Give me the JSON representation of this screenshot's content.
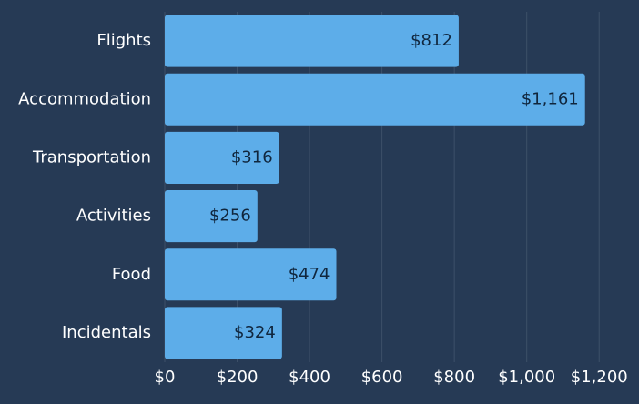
{
  "chart_data": {
    "type": "bar",
    "orientation": "horizontal",
    "categories": [
      "Flights",
      "Accommodation",
      "Transportation",
      "Activities",
      "Food",
      "Incidentals"
    ],
    "values": [
      812,
      1161,
      316,
      256,
      474,
      324
    ],
    "value_labels": [
      "$812",
      "$1,161",
      "$316",
      "$256",
      "$474",
      "$324"
    ],
    "color": "#5dade9",
    "xlim": [
      0,
      1300
    ],
    "xticks": [
      {
        "value": 0,
        "label": "$0"
      },
      {
        "value": 200,
        "label": "$200"
      },
      {
        "value": 400,
        "label": "$400"
      },
      {
        "value": 600,
        "label": "$600"
      },
      {
        "value": 800,
        "label": "$800"
      },
      {
        "value": 1000,
        "label": "$1,000"
      },
      {
        "value": 1200,
        "label": "$1,200"
      }
    ],
    "grid": true
  }
}
